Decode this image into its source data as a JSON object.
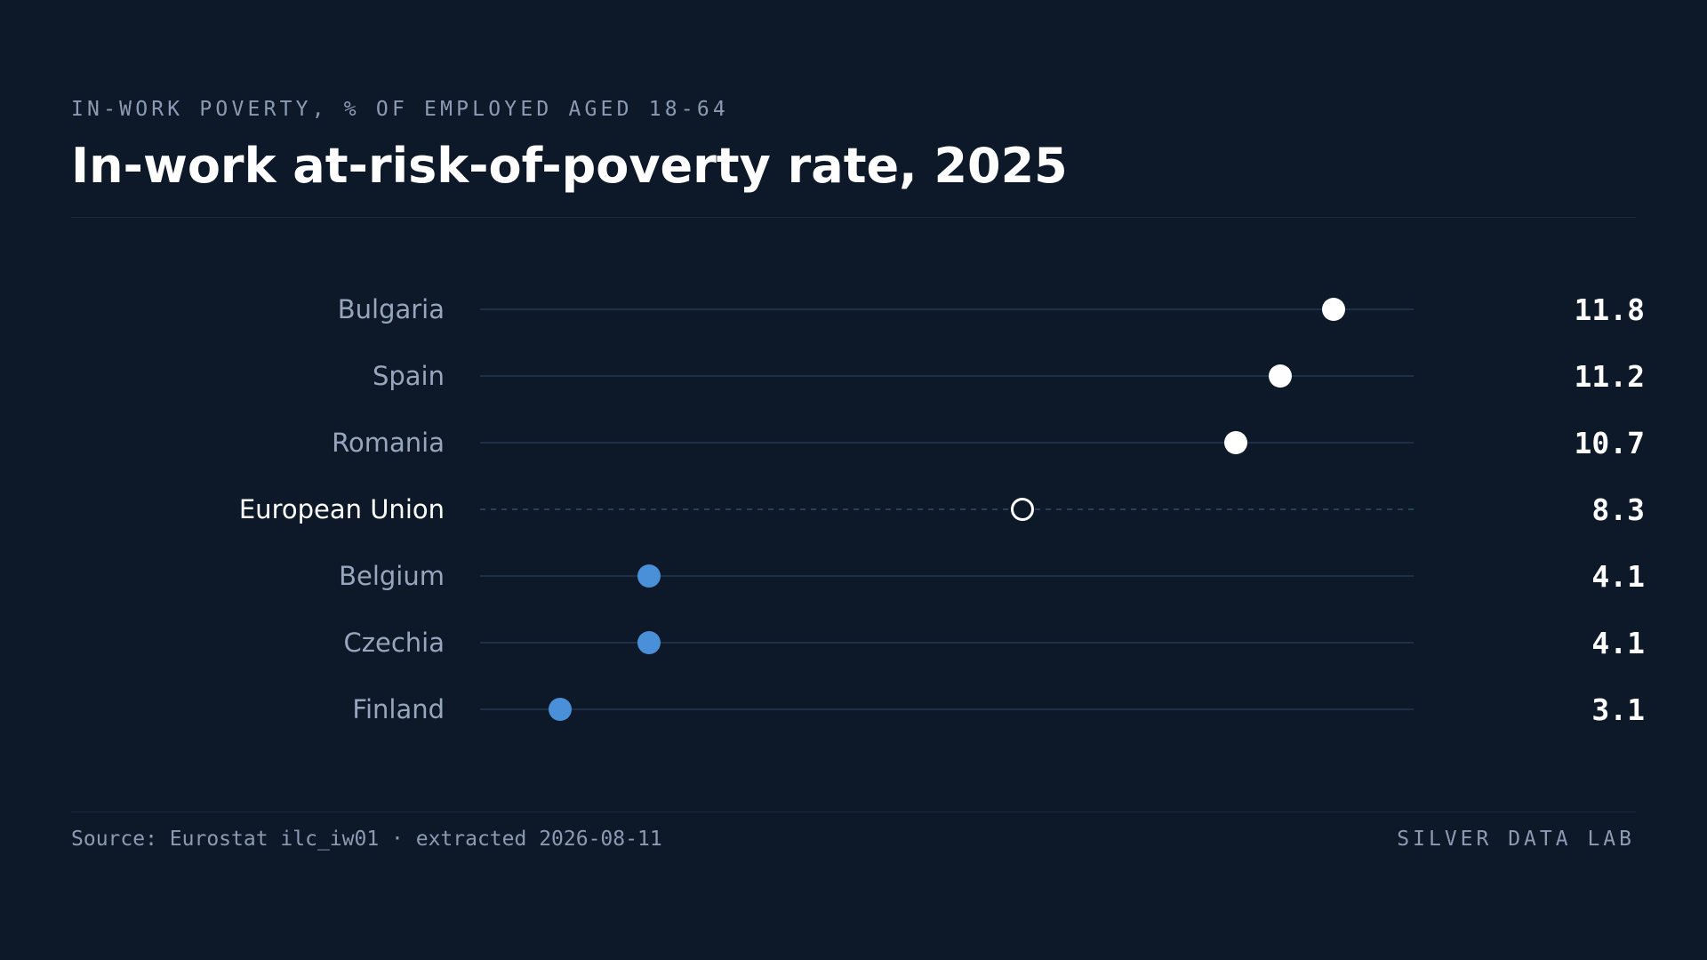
{
  "header": {
    "eyebrow": "IN-WORK POVERTY, % OF EMPLOYED AGED 18-64",
    "title": "In-work at-risk-of-poverty rate, 2025"
  },
  "footer": {
    "source": "Source: Eurostat ilc_iw01 · extracted 2026-08-11",
    "brand": "SILVER DATA LAB"
  },
  "colors": {
    "background": "#0d1929",
    "high": "#ffffff",
    "low": "#4a90d9",
    "reference": "#ffffff",
    "track": "#1e3048"
  },
  "chart_data": {
    "type": "scatter",
    "title": "In-work at-risk-of-poverty rate, 2025",
    "subtitle": "IN-WORK POVERTY, % OF EMPLOYED AGED 18-64",
    "xlabel": "",
    "ylabel": "",
    "xlim": [
      2.2,
      12.7
    ],
    "grid": false,
    "legend": "none",
    "categories": [
      "Bulgaria",
      "Spain",
      "Romania",
      "European Union",
      "Belgium",
      "Czechia",
      "Finland"
    ],
    "values": [
      11.8,
      11.2,
      10.7,
      8.3,
      4.1,
      4.1,
      3.1
    ],
    "value_labels": [
      "11.8",
      "11.2",
      "10.7",
      "8.3",
      "4.1",
      "4.1",
      "3.1"
    ],
    "marker_style": [
      "above",
      "above",
      "above",
      "reference",
      "below",
      "below",
      "below"
    ]
  }
}
